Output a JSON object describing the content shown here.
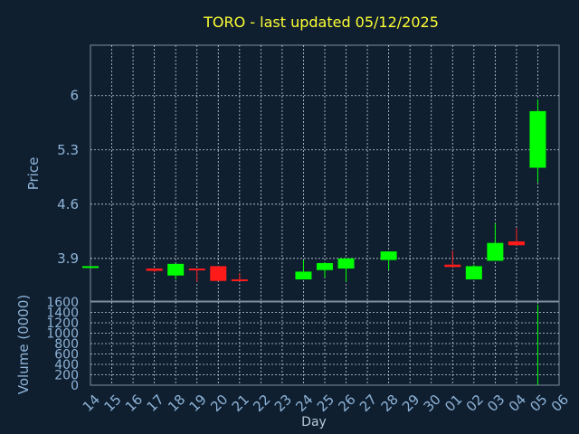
{
  "chart_data": {
    "type": "candlestick",
    "title": "TORO - last updated 05/12/2025",
    "x_label": "Day",
    "x_tick_labels": [
      "14",
      "15",
      "16",
      "17",
      "18",
      "19",
      "20",
      "21",
      "22",
      "23",
      "24",
      "25",
      "26",
      "27",
      "28",
      "29",
      "30",
      "01",
      "02",
      "03",
      "04",
      "05",
      "06"
    ],
    "price": {
      "ylabel": "Price",
      "yticks": [
        3.9,
        4.6,
        5.3,
        6
      ],
      "ylim": [
        3.35,
        6.65
      ],
      "grid": true,
      "candles": [
        {
          "day": "14",
          "open": 3.8,
          "high": 3.8,
          "low": 3.8,
          "close": 3.8
        },
        {
          "day": "17",
          "open": 3.77,
          "high": 3.77,
          "low": 3.72,
          "close": 3.74
        },
        {
          "day": "18",
          "open": 3.68,
          "high": 3.83,
          "low": 3.63,
          "close": 3.83
        },
        {
          "day": "19",
          "open": 3.77,
          "high": 3.77,
          "low": 3.6,
          "close": 3.76
        },
        {
          "day": "20",
          "open": 3.8,
          "high": 3.8,
          "low": 3.61,
          "close": 3.61
        },
        {
          "day": "21",
          "open": 3.63,
          "high": 3.71,
          "low": 3.61,
          "close": 3.61
        },
        {
          "day": "24",
          "open": 3.63,
          "high": 3.88,
          "low": 3.63,
          "close": 3.73
        },
        {
          "day": "25",
          "open": 3.75,
          "high": 3.85,
          "low": 3.65,
          "close": 3.84
        },
        {
          "day": "26",
          "open": 3.77,
          "high": 3.9,
          "low": 3.6,
          "close": 3.9
        },
        {
          "day": "28",
          "open": 3.88,
          "high": 3.99,
          "low": 3.75,
          "close": 3.99
        },
        {
          "day": "01",
          "open": 3.82,
          "high": 4.0,
          "low": 3.79,
          "close": 3.79
        },
        {
          "day": "02",
          "open": 3.63,
          "high": 3.82,
          "low": 3.63,
          "close": 3.8
        },
        {
          "day": "03",
          "open": 3.87,
          "high": 4.35,
          "low": 3.87,
          "close": 4.1
        },
        {
          "day": "04",
          "open": 4.12,
          "high": 4.29,
          "low": 4.07,
          "close": 4.07
        },
        {
          "day": "05",
          "open": 5.07,
          "high": 5.95,
          "low": 4.88,
          "close": 5.8
        }
      ]
    },
    "volume": {
      "ylabel": "Volume (0000)",
      "yticks": [
        0,
        200,
        400,
        600,
        800,
        1000,
        1200,
        1400,
        1600
      ],
      "ylim": [
        0,
        1600
      ],
      "grid": true,
      "bars": [
        {
          "day": "05",
          "value": 1550
        }
      ]
    },
    "colors": {
      "background": "#0f1f30",
      "up": "#00ff00",
      "down": "#ff1a1a",
      "title": "#ffff33",
      "ticks": "#8fb4d8",
      "grid": "#c6d0da",
      "frame": "#7f8fa0"
    }
  }
}
